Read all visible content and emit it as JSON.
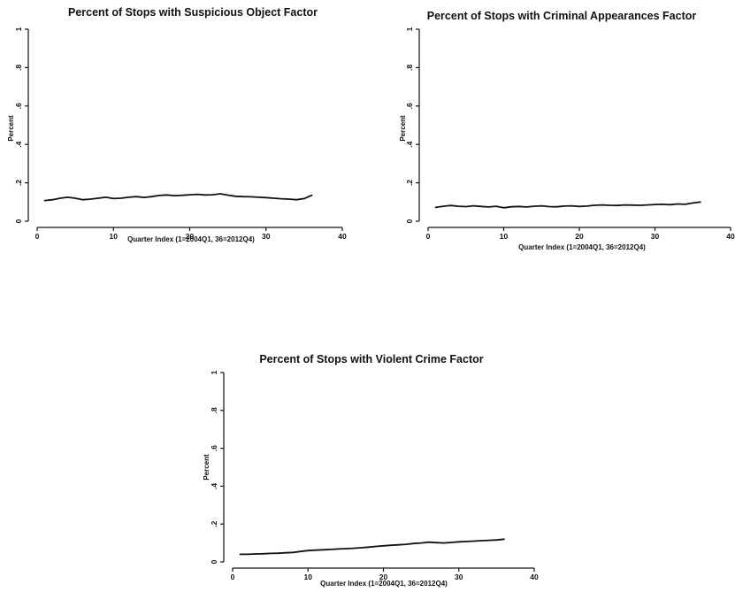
{
  "chart_data": [
    {
      "type": "line",
      "title": "Percent of Stops with Suspicious Object Factor",
      "xlabel": "Quarter Index (1=2004Q1, 36=2012Q4)",
      "ylabel": "Percent",
      "xlim": [
        0,
        40
      ],
      "ylim": [
        0,
        1
      ],
      "xticks": [
        0,
        10,
        20,
        30,
        40
      ],
      "xtick_labels": [
        "0",
        "10",
        "20",
        "30",
        "40"
      ],
      "yticks": [
        0,
        0.2,
        0.4,
        0.6,
        0.8,
        1
      ],
      "ytick_labels": [
        "0",
        ".2",
        ".4",
        ".6",
        ".8",
        "1"
      ],
      "grid": false,
      "series": [
        {
          "x": [
            1,
            2,
            3,
            4,
            5,
            6,
            7,
            8,
            9,
            10,
            11,
            12,
            13,
            14,
            15,
            16,
            17,
            18,
            19,
            20,
            21,
            22,
            23,
            24,
            25,
            26,
            27,
            28,
            29,
            30,
            31,
            32,
            33,
            34,
            35,
            36
          ],
          "values": [
            0.108,
            0.112,
            0.12,
            0.125,
            0.12,
            0.112,
            0.115,
            0.12,
            0.125,
            0.118,
            0.12,
            0.125,
            0.128,
            0.124,
            0.128,
            0.134,
            0.137,
            0.133,
            0.135,
            0.138,
            0.14,
            0.137,
            0.138,
            0.143,
            0.136,
            0.13,
            0.128,
            0.127,
            0.125,
            0.123,
            0.12,
            0.117,
            0.115,
            0.112,
            0.118,
            0.135
          ]
        }
      ]
    },
    {
      "type": "line",
      "title": "Percent of Stops with Criminal Appearances Factor",
      "xlabel": "Quarter Index (1=2004Q1, 36=2012Q4)",
      "ylabel": "Percent",
      "xlim": [
        0,
        40
      ],
      "ylim": [
        0,
        1
      ],
      "xticks": [
        0,
        10,
        20,
        30,
        40
      ],
      "xtick_labels": [
        "0",
        "10",
        "20",
        "30",
        "40"
      ],
      "yticks": [
        0,
        0.2,
        0.4,
        0.6,
        0.8,
        1
      ],
      "ytick_labels": [
        "0",
        ".2",
        ".4",
        ".6",
        ".8",
        "1"
      ],
      "grid": false,
      "series": [
        {
          "x": [
            1,
            2,
            3,
            4,
            5,
            6,
            7,
            8,
            9,
            10,
            11,
            12,
            13,
            14,
            15,
            16,
            17,
            18,
            19,
            20,
            21,
            22,
            23,
            24,
            25,
            26,
            27,
            28,
            29,
            30,
            31,
            32,
            33,
            34,
            35,
            36
          ],
          "values": [
            0.072,
            0.078,
            0.082,
            0.078,
            0.076,
            0.08,
            0.077,
            0.074,
            0.078,
            0.07,
            0.075,
            0.077,
            0.074,
            0.078,
            0.08,
            0.076,
            0.075,
            0.079,
            0.08,
            0.077,
            0.079,
            0.083,
            0.085,
            0.083,
            0.082,
            0.085,
            0.084,
            0.083,
            0.085,
            0.087,
            0.088,
            0.086,
            0.09,
            0.088,
            0.095,
            0.1
          ]
        }
      ]
    },
    {
      "type": "line",
      "title": "Percent of Stops with Violent Crime Factor",
      "xlabel": "Quarter Index (1=2004Q1, 36=2012Q4)",
      "ylabel": "Percent",
      "xlim": [
        0,
        40
      ],
      "ylim": [
        0,
        1
      ],
      "xticks": [
        0,
        10,
        20,
        30,
        40
      ],
      "xtick_labels": [
        "0",
        "10",
        "20",
        "30",
        "40"
      ],
      "yticks": [
        0,
        0.2,
        0.4,
        0.6,
        0.8,
        1
      ],
      "ytick_labels": [
        "0",
        ".2",
        ".4",
        ".6",
        ".8",
        "1"
      ],
      "grid": false,
      "series": [
        {
          "x": [
            1,
            2,
            3,
            4,
            5,
            6,
            7,
            8,
            9,
            10,
            11,
            12,
            13,
            14,
            15,
            16,
            17,
            18,
            19,
            20,
            21,
            22,
            23,
            24,
            25,
            26,
            27,
            28,
            29,
            30,
            31,
            32,
            33,
            34,
            35,
            36
          ],
          "values": [
            0.04,
            0.04,
            0.042,
            0.043,
            0.045,
            0.046,
            0.048,
            0.05,
            0.055,
            0.06,
            0.062,
            0.064,
            0.066,
            0.068,
            0.07,
            0.072,
            0.075,
            0.078,
            0.082,
            0.085,
            0.088,
            0.09,
            0.093,
            0.097,
            0.1,
            0.104,
            0.102,
            0.1,
            0.103,
            0.106,
            0.108,
            0.11,
            0.112,
            0.114,
            0.116,
            0.12
          ]
        }
      ]
    }
  ]
}
